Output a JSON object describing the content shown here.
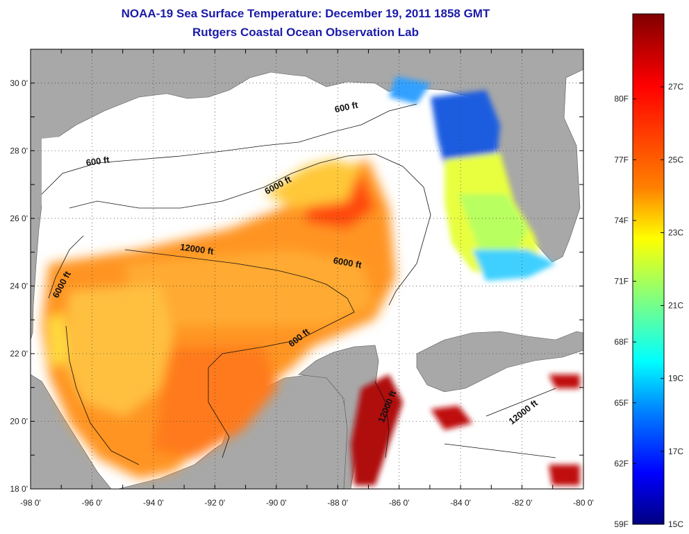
{
  "header": {
    "title": "NOAA-19 Sea Surface Temperature:  December 19, 2011 1858 GMT",
    "subtitle": "Rutgers Coastal Ocean Observation Lab"
  },
  "map": {
    "lon_range": [
      -98,
      -80
    ],
    "lat_range": [
      18,
      31
    ],
    "x_ticks": [
      "-98 0'",
      "-96 0'",
      "-94 0'",
      "-92 0'",
      "-90 0'",
      "-88 0'",
      "-86 0'",
      "-84 0'",
      "-82 0'",
      "-80 0'"
    ],
    "y_ticks": [
      "18 0'",
      "20 0'",
      "22 0'",
      "24 0'",
      "26 0'",
      "28 0'",
      "30 0'"
    ],
    "land_color": "#a8a8a8",
    "grid": "dotted",
    "contour_labels": [
      {
        "text": "600 ft",
        "lon": -95.8,
        "lat": 27.6,
        "rot": -8
      },
      {
        "text": "600 ft",
        "lon": -87.7,
        "lat": 29.2,
        "rot": -12
      },
      {
        "text": "6000 ft",
        "lon": -89.9,
        "lat": 26.9,
        "rot": -28
      },
      {
        "text": "12000 ft",
        "lon": -92.6,
        "lat": 25.0,
        "rot": 8
      },
      {
        "text": "6000 ft",
        "lon": -87.7,
        "lat": 24.6,
        "rot": 10
      },
      {
        "text": "6000 ft",
        "lon": -96.9,
        "lat": 24.0,
        "rot": -62
      },
      {
        "text": "600 ft",
        "lon": -89.2,
        "lat": 22.4,
        "rot": -38
      },
      {
        "text": "12000 ft",
        "lon": -86.3,
        "lat": 20.4,
        "rot": -68
      },
      {
        "text": "12000 ft",
        "lon": -81.9,
        "lat": 20.2,
        "rot": -38
      }
    ]
  },
  "colorbar": {
    "f_labels": [
      "80F",
      "77F",
      "74F",
      "71F",
      "68F",
      "65F",
      "62F",
      "59F"
    ],
    "c_labels": [
      "27C",
      "25C",
      "23C",
      "21C",
      "19C",
      "17C",
      "15C"
    ],
    "stops": [
      "#800000",
      "#ff0000",
      "#ff8000",
      "#ffff00",
      "#80ff80",
      "#00ffff",
      "#0080ff",
      "#0000ff",
      "#000080"
    ]
  }
}
